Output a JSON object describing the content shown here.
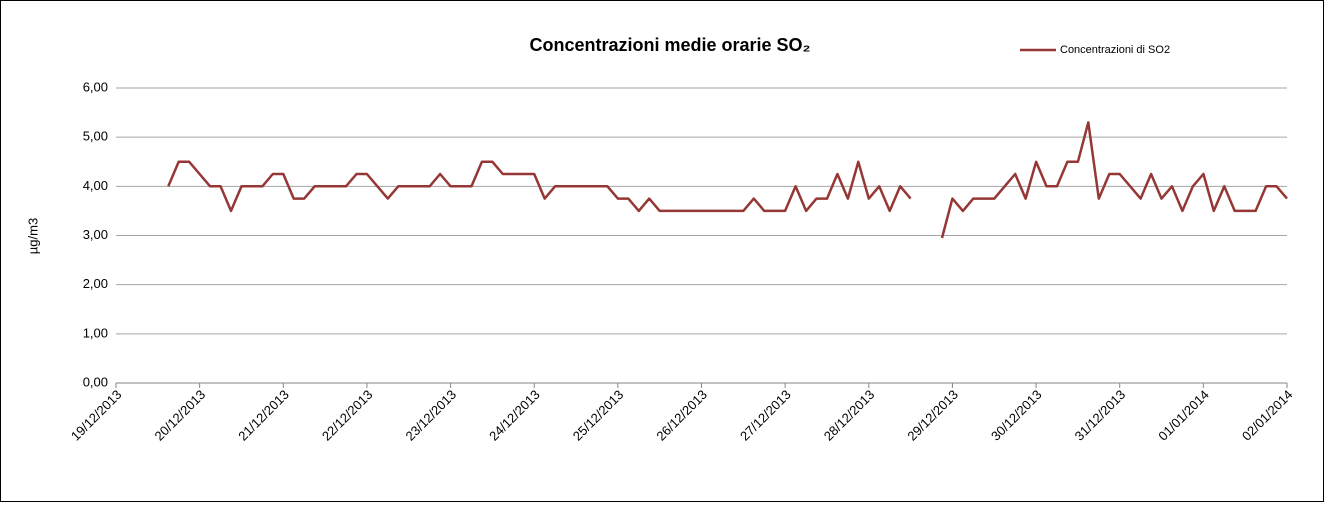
{
  "chart_data": {
    "type": "line",
    "title": "Concentrazioni medie orarie SO₂",
    "y_label": "µg/m3",
    "legend": "top-right",
    "grid": true,
    "ylim": [
      0,
      6
    ],
    "yticks": [
      {
        "value": 0,
        "label": "0,00"
      },
      {
        "value": 1,
        "label": "1,00"
      },
      {
        "value": 2,
        "label": "2,00"
      },
      {
        "value": 3,
        "label": "3,00"
      },
      {
        "value": 4,
        "label": "4,00"
      },
      {
        "value": 5,
        "label": "5,00"
      },
      {
        "value": 6,
        "label": "6,00"
      }
    ],
    "xlim": [
      "2013-12-19T00:00",
      "2014-01-02T00:00"
    ],
    "xticks": [
      {
        "value": "2013-12-19T00:00",
        "label": "19/12/2013"
      },
      {
        "value": "2013-12-20T00:00",
        "label": "20/12/2013"
      },
      {
        "value": "2013-12-21T00:00",
        "label": "21/12/2013"
      },
      {
        "value": "2013-12-22T00:00",
        "label": "22/12/2013"
      },
      {
        "value": "2013-12-23T00:00",
        "label": "23/12/2013"
      },
      {
        "value": "2013-12-24T00:00",
        "label": "24/12/2013"
      },
      {
        "value": "2013-12-25T00:00",
        "label": "25/12/2013"
      },
      {
        "value": "2013-12-26T00:00",
        "label": "26/12/2013"
      },
      {
        "value": "2013-12-27T00:00",
        "label": "27/12/2013"
      },
      {
        "value": "2013-12-28T00:00",
        "label": "28/12/2013"
      },
      {
        "value": "2013-12-29T00:00",
        "label": "29/12/2013"
      },
      {
        "value": "2013-12-30T00:00",
        "label": "30/12/2013"
      },
      {
        "value": "2013-12-31T00:00",
        "label": "31/12/2013"
      },
      {
        "value": "2014-01-01T00:00",
        "label": "01/01/2014"
      },
      {
        "value": "2014-01-02T00:00",
        "label": "02/01/2014"
      }
    ],
    "x": [
      "2013-12-19T15:00",
      "2013-12-19T18:00",
      "2013-12-19T21:00",
      "2013-12-20T00:00",
      "2013-12-20T03:00",
      "2013-12-20T06:00",
      "2013-12-20T09:00",
      "2013-12-20T12:00",
      "2013-12-20T15:00",
      "2013-12-20T18:00",
      "2013-12-20T21:00",
      "2013-12-21T00:00",
      "2013-12-21T03:00",
      "2013-12-21T06:00",
      "2013-12-21T09:00",
      "2013-12-21T12:00",
      "2013-12-21T15:00",
      "2013-12-21T18:00",
      "2013-12-21T21:00",
      "2013-12-22T00:00",
      "2013-12-22T03:00",
      "2013-12-22T06:00",
      "2013-12-22T09:00",
      "2013-12-22T12:00",
      "2013-12-22T15:00",
      "2013-12-22T18:00",
      "2013-12-22T21:00",
      "2013-12-23T00:00",
      "2013-12-23T03:00",
      "2013-12-23T06:00",
      "2013-12-23T09:00",
      "2013-12-23T12:00",
      "2013-12-23T15:00",
      "2013-12-23T18:00",
      "2013-12-23T21:00",
      "2013-12-24T00:00",
      "2013-12-24T03:00",
      "2013-12-24T06:00",
      "2013-12-24T09:00",
      "2013-12-24T12:00",
      "2013-12-24T15:00",
      "2013-12-24T18:00",
      "2013-12-24T21:00",
      "2013-12-25T00:00",
      "2013-12-25T03:00",
      "2013-12-25T06:00",
      "2013-12-25T09:00",
      "2013-12-25T12:00",
      "2013-12-25T15:00",
      "2013-12-25T18:00",
      "2013-12-25T21:00",
      "2013-12-26T00:00",
      "2013-12-26T03:00",
      "2013-12-26T06:00",
      "2013-12-26T09:00",
      "2013-12-26T12:00",
      "2013-12-26T15:00",
      "2013-12-26T18:00",
      "2013-12-26T21:00",
      "2013-12-27T00:00",
      "2013-12-27T03:00",
      "2013-12-27T06:00",
      "2013-12-27T09:00",
      "2013-12-27T12:00",
      "2013-12-27T15:00",
      "2013-12-27T18:00",
      "2013-12-27T21:00",
      "2013-12-28T00:00",
      "2013-12-28T03:00",
      "2013-12-28T06:00",
      "2013-12-28T09:00",
      "2013-12-28T12:00",
      "2013-12-28T15:00",
      "2013-12-28T18:00",
      "2013-12-28T21:00",
      "2013-12-29T00:00",
      "2013-12-29T03:00",
      "2013-12-29T06:00",
      "2013-12-29T09:00",
      "2013-12-29T12:00",
      "2013-12-29T15:00",
      "2013-12-29T18:00",
      "2013-12-29T21:00",
      "2013-12-30T00:00",
      "2013-12-30T03:00",
      "2013-12-30T06:00",
      "2013-12-30T09:00",
      "2013-12-30T12:00",
      "2013-12-30T15:00",
      "2013-12-30T18:00",
      "2013-12-30T21:00",
      "2013-12-31T00:00",
      "2013-12-31T03:00",
      "2013-12-31T06:00",
      "2013-12-31T09:00",
      "2013-12-31T12:00",
      "2013-12-31T15:00",
      "2013-12-31T18:00",
      "2013-12-31T21:00",
      "2014-01-01T00:00",
      "2014-01-01T03:00",
      "2014-01-01T06:00",
      "2014-01-01T09:00",
      "2014-01-01T12:00",
      "2014-01-01T15:00",
      "2014-01-01T18:00",
      "2014-01-01T21:00",
      "2014-01-02T00:00"
    ],
    "series": [
      {
        "name": "Concentrazioni di SO2",
        "color": "#953735",
        "values": [
          4.0,
          4.5,
          4.5,
          4.25,
          4.0,
          4.0,
          3.5,
          4.0,
          4.0,
          4.0,
          4.25,
          4.25,
          3.75,
          3.75,
          4.0,
          4.0,
          4.0,
          4.0,
          4.25,
          4.25,
          4.0,
          3.75,
          4.0,
          4.0,
          4.0,
          4.0,
          4.25,
          4.0,
          4.0,
          4.0,
          4.5,
          4.5,
          4.25,
          4.25,
          4.25,
          4.25,
          3.75,
          4.0,
          4.0,
          4.0,
          4.0,
          4.0,
          4.0,
          3.75,
          3.75,
          3.5,
          3.75,
          3.5,
          3.5,
          3.5,
          3.5,
          3.5,
          3.5,
          3.5,
          3.5,
          3.5,
          3.75,
          3.5,
          3.5,
          3.5,
          4.0,
          3.5,
          3.75,
          3.75,
          4.25,
          3.75,
          4.5,
          3.75,
          4.0,
          3.5,
          4.0,
          3.75,
          null,
          null,
          2.95,
          3.75,
          3.5,
          3.75,
          3.75,
          3.75,
          4.0,
          4.25,
          3.75,
          4.5,
          4.0,
          4.0,
          4.5,
          4.5,
          5.3,
          3.75,
          4.25,
          4.25,
          4.0,
          3.75,
          4.25,
          3.75,
          4.0,
          3.5,
          4.0,
          4.25,
          3.5,
          4.0,
          3.5,
          3.5,
          3.5,
          4.0,
          4.0,
          3.75
        ]
      }
    ]
  }
}
